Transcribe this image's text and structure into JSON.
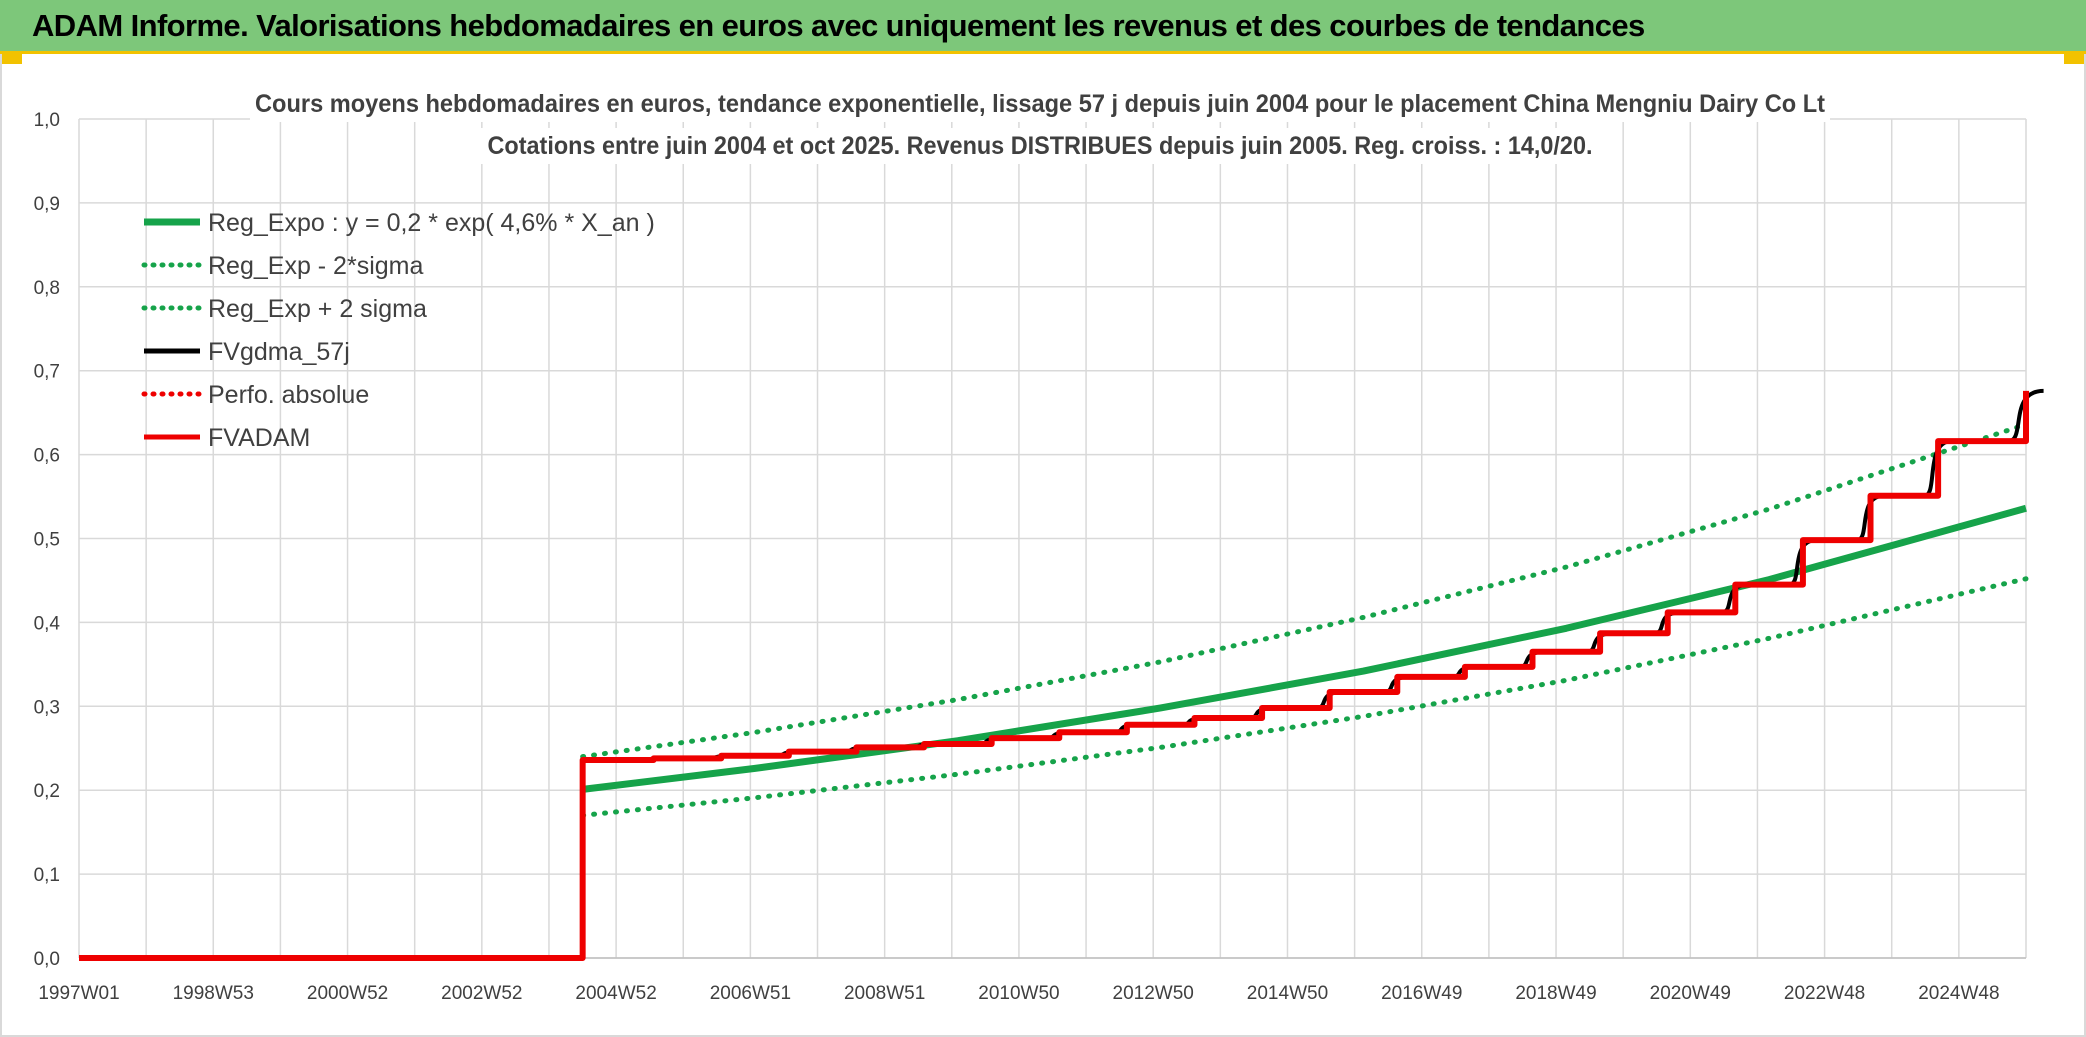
{
  "banner": {
    "title": "ADAM Informe. Valorisations hebdomadaires en euros avec uniquement les revenus et des courbes de tendances"
  },
  "colors": {
    "banner_bg": "#7dc77a",
    "accent_yellow": "#f2c200",
    "green": "#16a34a",
    "black": "#000000",
    "red": "#ee0000"
  },
  "chart_data": {
    "type": "line",
    "title_lines": [
      "Cours moyens hebdomadaires en euros, tendance exponentielle, lissage 57 j depuis juin 2004 pour le placement China Mengniu Dairy Co Lt",
      "Cotations entre juin 2004 et oct 2025. Revenus DISTRIBUES depuis juin 2005. Reg. croiss. : 14,0/20."
    ],
    "x_ticks": [
      "1997W01",
      "1998W53",
      "2000W52",
      "2002W52",
      "2004W52",
      "2006W51",
      "2008W51",
      "2010W50",
      "2012W50",
      "2014W50",
      "2016W49",
      "2018W49",
      "2020W49",
      "2022W48",
      "2024W48"
    ],
    "x_range": [
      1997.0,
      2025.8
    ],
    "y_ticks": [
      "0,0",
      "0,1",
      "0,2",
      "0,3",
      "0,4",
      "0,5",
      "0,6",
      "0,7",
      "0,8",
      "0,9",
      "1,0"
    ],
    "ylim": [
      0,
      1.0
    ],
    "grid": true,
    "legend_position": "top-left",
    "series": [
      {
        "name": "Reg_Expo : y = 0,2 * exp( 4,6% *  X_an )",
        "style": "solid-thick",
        "color": "#16a34a",
        "x": [
          2004.45,
          2007.0,
          2010.0,
          2013.0,
          2016.0,
          2019.0,
          2022.0,
          2025.8
        ],
        "y": [
          0.201,
          0.226,
          0.259,
          0.298,
          0.342,
          0.393,
          0.451,
          0.536
        ]
      },
      {
        "name": "Reg_Exp - 2*sigma",
        "style": "dotted",
        "color": "#16a34a",
        "x": [
          2004.45,
          2007.0,
          2010.0,
          2013.0,
          2016.0,
          2019.0,
          2022.0,
          2025.8
        ],
        "y": [
          0.17,
          0.191,
          0.219,
          0.251,
          0.288,
          0.331,
          0.381,
          0.452
        ]
      },
      {
        "name": "Reg_Exp + 2 sigma",
        "style": "dotted",
        "color": "#16a34a",
        "x": [
          2004.45,
          2007.0,
          2010.0,
          2013.0,
          2016.0,
          2019.0,
          2022.0,
          2025.8
        ],
        "y": [
          0.24,
          0.269,
          0.308,
          0.353,
          0.406,
          0.466,
          0.535,
          0.636
        ]
      },
      {
        "name": "FVgdma_57j",
        "style": "solid",
        "color": "#000000",
        "x": [
          2004.45,
          2005.5,
          2006.5,
          2007.5,
          2008.5,
          2009.5,
          2010.5,
          2011.5,
          2012.5,
          2013.5,
          2014.5,
          2015.5,
          2016.5,
          2017.5,
          2018.5,
          2019.5,
          2020.5,
          2021.5,
          2022.5,
          2023.5,
          2024.5,
          2025.8
        ],
        "y": [
          0.236,
          0.238,
          0.241,
          0.246,
          0.251,
          0.255,
          0.262,
          0.269,
          0.278,
          0.286,
          0.298,
          0.317,
          0.335,
          0.347,
          0.365,
          0.387,
          0.412,
          0.445,
          0.498,
          0.551,
          0.616,
          0.676
        ]
      },
      {
        "name": "Perfo. absolue",
        "style": "dotted",
        "color": "#ee0000",
        "x": [],
        "y": []
      },
      {
        "name": "FVADAM",
        "style": "step-thick",
        "color": "#ee0000",
        "x": [
          1997.0,
          2004.45,
          2004.45,
          2005.5,
          2006.5,
          2007.5,
          2008.5,
          2009.5,
          2010.5,
          2011.5,
          2012.5,
          2013.5,
          2014.5,
          2015.5,
          2016.5,
          2017.5,
          2018.5,
          2019.5,
          2020.5,
          2021.5,
          2022.5,
          2023.5,
          2024.5,
          2025.8
        ],
        "y": [
          0.0,
          0.0,
          0.236,
          0.238,
          0.241,
          0.246,
          0.251,
          0.255,
          0.262,
          0.269,
          0.278,
          0.286,
          0.298,
          0.317,
          0.335,
          0.347,
          0.365,
          0.387,
          0.412,
          0.445,
          0.498,
          0.551,
          0.616,
          0.676
        ]
      }
    ]
  }
}
